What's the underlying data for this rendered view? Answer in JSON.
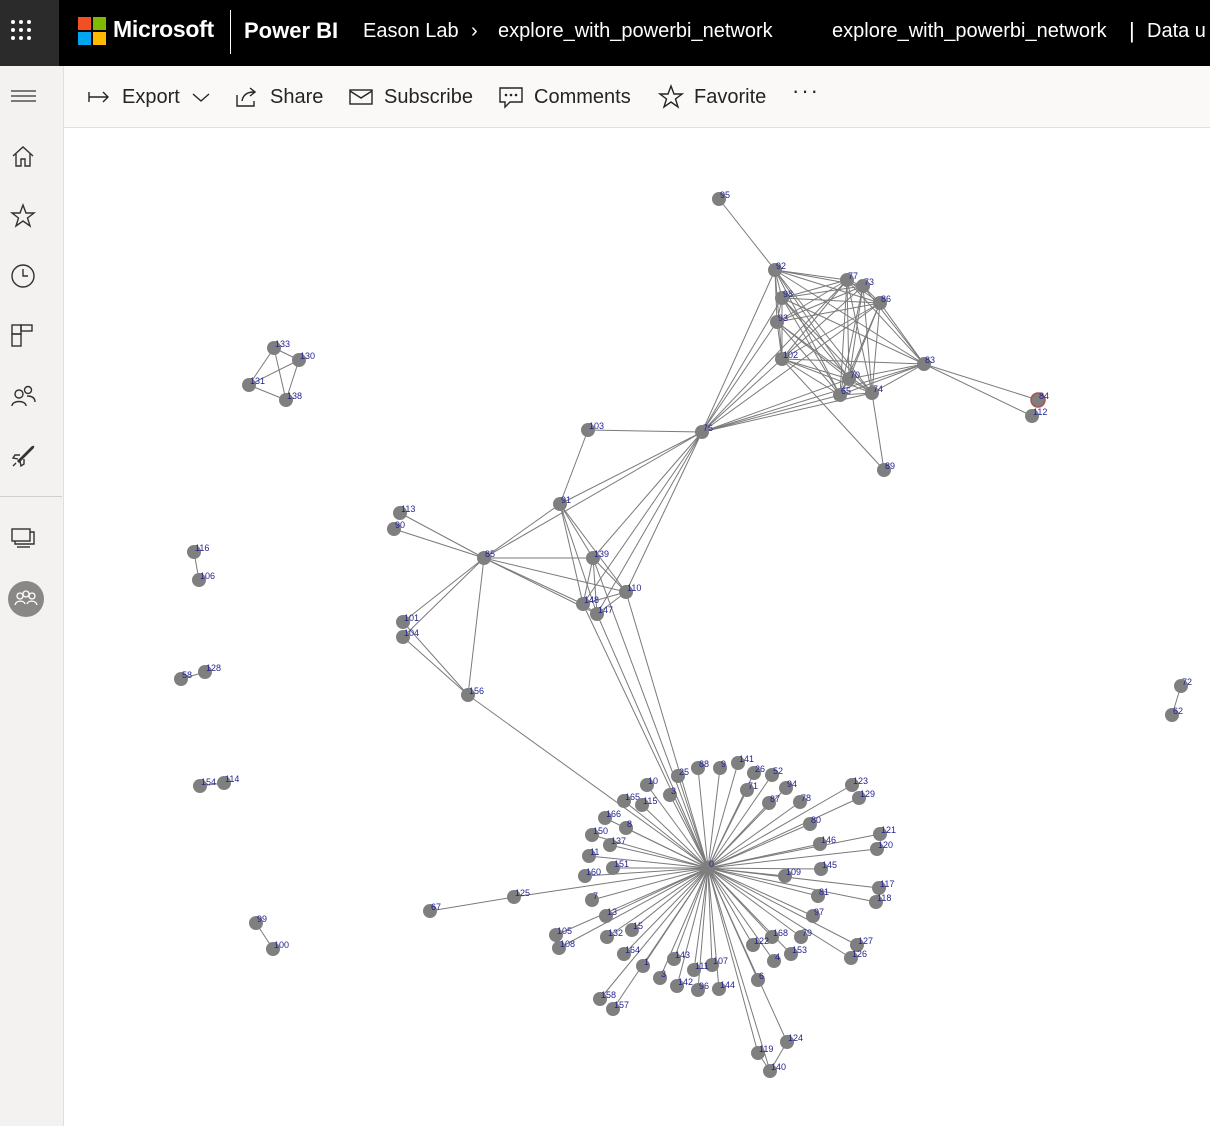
{
  "topbar": {
    "brand": "Microsoft",
    "product": "Power BI",
    "breadcrumb": {
      "workspace": "Eason Lab",
      "report": "explore_with_powerbi_network"
    },
    "report_title": "explore_with_powerbi_network",
    "status_text": "Data u",
    "logo_colors": [
      "#f25022",
      "#7fba00",
      "#00a4ef",
      "#ffb900"
    ]
  },
  "sidebar": {
    "items": [
      {
        "icon": "menu-icon"
      },
      {
        "icon": "home-icon"
      },
      {
        "icon": "star-icon"
      },
      {
        "icon": "clock-icon"
      },
      {
        "icon": "apps-icon"
      },
      {
        "icon": "shared-icon"
      },
      {
        "icon": "rocket-icon"
      },
      {
        "icon": "workspaces-icon"
      },
      {
        "icon": "workspace-group-icon"
      }
    ]
  },
  "toolbar": {
    "export_label": "Export",
    "share_label": "Share",
    "subscribe_label": "Subscribe",
    "comments_label": "Comments",
    "favorite_label": "Favorite",
    "more_label": "···"
  },
  "network": {
    "node_color": "#7f7f7f",
    "edge_color": "#7a7a7a",
    "label_color": "#1f1f8f",
    "highlight_color": "#b05050",
    "nodes": [
      "95",
      "92",
      "77",
      "73",
      "86",
      "98",
      "93",
      "102",
      "83",
      "70",
      "65",
      "74",
      "84",
      "112",
      "76",
      "103",
      "89",
      "91",
      "113",
      "90",
      "85",
      "139",
      "110",
      "148",
      "147",
      "101",
      "104",
      "156",
      "133",
      "130",
      "131",
      "138",
      "116",
      "106",
      "58",
      "128",
      "154",
      "114",
      "99",
      "100",
      "72",
      "62",
      "0",
      "88",
      "9",
      "141",
      "26",
      "52",
      "25",
      "10",
      "3",
      "71",
      "94",
      "165",
      "115",
      "87",
      "78",
      "166",
      "8",
      "80",
      "150",
      "137",
      "146",
      "121",
      "11",
      "120",
      "151",
      "145",
      "160",
      "109",
      "117",
      "125",
      "81",
      "118",
      "67",
      "7",
      "13",
      "97",
      "15",
      "105",
      "132",
      "168",
      "79",
      "127",
      "108",
      "164",
      "122",
      "153",
      "126",
      "143",
      "107",
      "1",
      "111",
      "4",
      "6",
      "3b",
      "142",
      "96",
      "144",
      "158",
      "157",
      "124",
      "119",
      "140",
      "123",
      "129"
    ],
    "edges": [
      [
        "95",
        "92"
      ],
      [
        "92",
        "77"
      ],
      [
        "92",
        "73"
      ],
      [
        "92",
        "86"
      ],
      [
        "92",
        "98"
      ],
      [
        "92",
        "93"
      ],
      [
        "92",
        "102"
      ],
      [
        "92",
        "70"
      ],
      [
        "92",
        "65"
      ],
      [
        "92",
        "74"
      ],
      [
        "92",
        "83"
      ],
      [
        "92",
        "76"
      ],
      [
        "77",
        "73"
      ],
      [
        "77",
        "86"
      ],
      [
        "77",
        "98"
      ],
      [
        "77",
        "93"
      ],
      [
        "77",
        "102"
      ],
      [
        "77",
        "70"
      ],
      [
        "77",
        "65"
      ],
      [
        "77",
        "74"
      ],
      [
        "77",
        "83"
      ],
      [
        "77",
        "76"
      ],
      [
        "73",
        "86"
      ],
      [
        "73",
        "98"
      ],
      [
        "73",
        "93"
      ],
      [
        "73",
        "102"
      ],
      [
        "73",
        "70"
      ],
      [
        "73",
        "65"
      ],
      [
        "73",
        "74"
      ],
      [
        "73",
        "83"
      ],
      [
        "86",
        "98"
      ],
      [
        "86",
        "93"
      ],
      [
        "86",
        "102"
      ],
      [
        "86",
        "70"
      ],
      [
        "86",
        "65"
      ],
      [
        "86",
        "74"
      ],
      [
        "86",
        "83"
      ],
      [
        "86",
        "76"
      ],
      [
        "98",
        "93"
      ],
      [
        "98",
        "102"
      ],
      [
        "98",
        "70"
      ],
      [
        "98",
        "65"
      ],
      [
        "98",
        "74"
      ],
      [
        "98",
        "83"
      ],
      [
        "98",
        "76"
      ],
      [
        "93",
        "102"
      ],
      [
        "93",
        "70"
      ],
      [
        "93",
        "65"
      ],
      [
        "93",
        "74"
      ],
      [
        "93",
        "76"
      ],
      [
        "102",
        "70"
      ],
      [
        "102",
        "65"
      ],
      [
        "102",
        "74"
      ],
      [
        "102",
        "83"
      ],
      [
        "102",
        "76"
      ],
      [
        "102",
        "89"
      ],
      [
        "70",
        "65"
      ],
      [
        "70",
        "74"
      ],
      [
        "70",
        "83"
      ],
      [
        "70",
        "76"
      ],
      [
        "65",
        "74"
      ],
      [
        "65",
        "83"
      ],
      [
        "65",
        "76"
      ],
      [
        "74",
        "83"
      ],
      [
        "74",
        "76"
      ],
      [
        "74",
        "89"
      ],
      [
        "83",
        "84"
      ],
      [
        "83",
        "112"
      ],
      [
        "83",
        "76"
      ],
      [
        "76",
        "103"
      ],
      [
        "76",
        "91"
      ],
      [
        "76",
        "85"
      ],
      [
        "76",
        "139"
      ],
      [
        "76",
        "110"
      ],
      [
        "76",
        "148"
      ],
      [
        "76",
        "147"
      ],
      [
        "103",
        "91"
      ],
      [
        "91",
        "85"
      ],
      [
        "91",
        "139"
      ],
      [
        "91",
        "110"
      ],
      [
        "91",
        "148"
      ],
      [
        "91",
        "147"
      ],
      [
        "85",
        "113"
      ],
      [
        "85",
        "90"
      ],
      [
        "85",
        "139"
      ],
      [
        "85",
        "110"
      ],
      [
        "85",
        "148"
      ],
      [
        "85",
        "147"
      ],
      [
        "85",
        "101"
      ],
      [
        "85",
        "104"
      ],
      [
        "85",
        "156"
      ],
      [
        "139",
        "148"
      ],
      [
        "139",
        "147"
      ],
      [
        "139",
        "110"
      ],
      [
        "110",
        "148"
      ],
      [
        "110",
        "147"
      ],
      [
        "148",
        "147"
      ],
      [
        "101",
        "156"
      ],
      [
        "104",
        "156"
      ],
      [
        "156",
        "0"
      ],
      [
        "148",
        "0"
      ],
      [
        "147",
        "0"
      ],
      [
        "110",
        "0"
      ],
      [
        "139",
        "0"
      ],
      [
        "133",
        "130"
      ],
      [
        "133",
        "131"
      ],
      [
        "133",
        "138"
      ],
      [
        "130",
        "131"
      ],
      [
        "130",
        "138"
      ],
      [
        "131",
        "138"
      ],
      [
        "116",
        "106"
      ],
      [
        "58",
        "128"
      ],
      [
        "154",
        "114"
      ],
      [
        "99",
        "100"
      ],
      [
        "72",
        "62"
      ],
      [
        "0",
        "88"
      ],
      [
        "0",
        "9"
      ],
      [
        "0",
        "141"
      ],
      [
        "0",
        "26"
      ],
      [
        "0",
        "52"
      ],
      [
        "0",
        "25"
      ],
      [
        "0",
        "10"
      ],
      [
        "0",
        "3"
      ],
      [
        "0",
        "71"
      ],
      [
        "0",
        "94"
      ],
      [
        "0",
        "165"
      ],
      [
        "0",
        "115"
      ],
      [
        "0",
        "87"
      ],
      [
        "0",
        "78"
      ],
      [
        "0",
        "166"
      ],
      [
        "0",
        "8"
      ],
      [
        "0",
        "80"
      ],
      [
        "0",
        "150"
      ],
      [
        "0",
        "137"
      ],
      [
        "0",
        "146"
      ],
      [
        "0",
        "121"
      ],
      [
        "0",
        "11"
      ],
      [
        "0",
        "120"
      ],
      [
        "0",
        "151"
      ],
      [
        "0",
        "145"
      ],
      [
        "0",
        "160"
      ],
      [
        "0",
        "109"
      ],
      [
        "0",
        "117"
      ],
      [
        "0",
        "125"
      ],
      [
        "0",
        "81"
      ],
      [
        "0",
        "118"
      ],
      [
        "0",
        "7"
      ],
      [
        "0",
        "13"
      ],
      [
        "0",
        "97"
      ],
      [
        "0",
        "15"
      ],
      [
        "0",
        "105"
      ],
      [
        "0",
        "132"
      ],
      [
        "0",
        "168"
      ],
      [
        "0",
        "79"
      ],
      [
        "0",
        "127"
      ],
      [
        "0",
        "108"
      ],
      [
        "0",
        "164"
      ],
      [
        "0",
        "122"
      ],
      [
        "0",
        "153"
      ],
      [
        "0",
        "126"
      ],
      [
        "0",
        "143"
      ],
      [
        "0",
        "107"
      ],
      [
        "0",
        "1"
      ],
      [
        "0",
        "111"
      ],
      [
        "0",
        "4"
      ],
      [
        "0",
        "6"
      ],
      [
        "0",
        "3b"
      ],
      [
        "0",
        "142"
      ],
      [
        "0",
        "96"
      ],
      [
        "0",
        "144"
      ],
      [
        "0",
        "158"
      ],
      [
        "0",
        "157"
      ],
      [
        "0",
        "124"
      ],
      [
        "0",
        "119"
      ],
      [
        "0",
        "140"
      ],
      [
        "0",
        "123"
      ],
      [
        "0",
        "129"
      ],
      [
        "125",
        "67"
      ],
      [
        "124",
        "140"
      ],
      [
        "119",
        "140"
      ]
    ]
  }
}
